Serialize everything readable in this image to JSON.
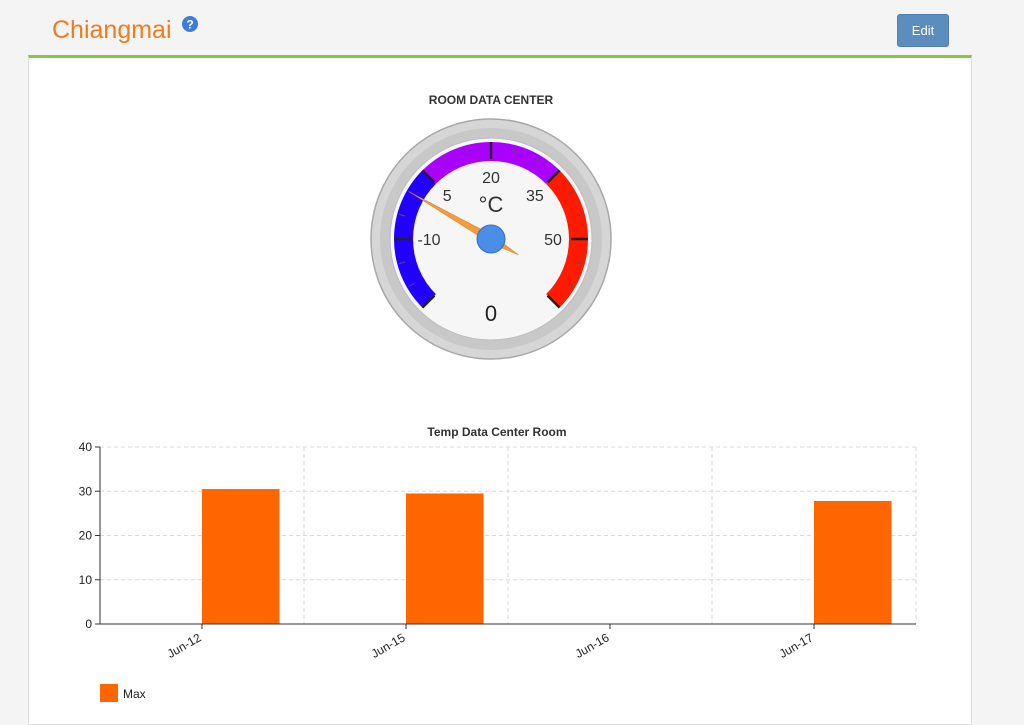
{
  "header": {
    "title": "Chiangmai",
    "edit_label": "Edit"
  },
  "gauge": {
    "title": "ROOM DATA CENTER",
    "unit": "°C",
    "value": 0,
    "value_label": "0",
    "min": -25,
    "max": 65,
    "tick_labels": [
      "-10",
      "5",
      "20",
      "35",
      "50"
    ],
    "bands": [
      {
        "from": -25,
        "to": 5,
        "color": "#2200ff"
      },
      {
        "from": 5,
        "to": 35,
        "color": "#aa00ff"
      },
      {
        "from": 35,
        "to": 65,
        "color": "#ff1a00"
      }
    ],
    "needle_color": "#f39c3c",
    "hub_color": "#4a8ee8"
  },
  "chart_data": {
    "type": "bar",
    "title": "Temp Data Center Room",
    "categories": [
      "Jun-12",
      "Jun-15",
      "Jun-16",
      "Jun-17"
    ],
    "series": [
      {
        "name": "Max",
        "values": [
          30.5,
          29.5,
          null,
          27.8
        ],
        "color": "#ff6600"
      }
    ],
    "ylim": [
      0,
      40
    ],
    "yticks": [
      "0",
      "10",
      "20",
      "30",
      "40"
    ],
    "grid": true,
    "legend": "bottom-left"
  }
}
